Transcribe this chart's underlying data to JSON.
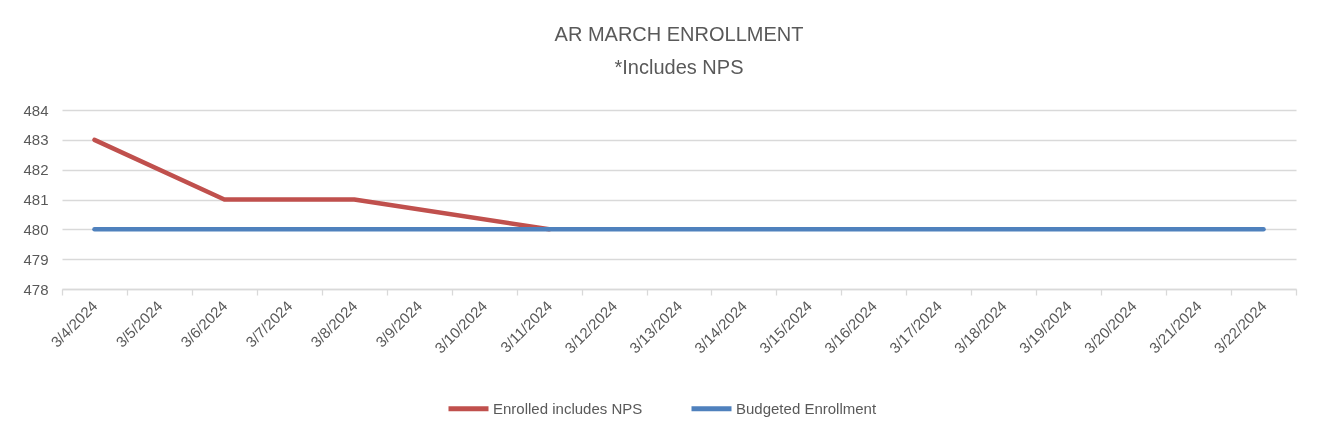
{
  "chart_data": {
    "type": "line",
    "title": "AR MARCH ENROLLMENT",
    "subtitle": "*Includes NPS",
    "x": [
      "2024-03-04",
      "2024-03-06",
      "2024-03-08",
      "2024-03-11",
      "2024-03-13",
      "2024-03-15",
      "2024-03-18",
      "2024-03-20",
      "2024-03-22"
    ],
    "series": [
      {
        "name": "Enrolled includes NPS",
        "color": "#c0504d",
        "x": [
          "2024-03-04",
          "2024-03-06",
          "2024-03-08",
          "2024-03-11"
        ],
        "values": [
          483,
          481,
          481,
          480
        ]
      },
      {
        "name": "Budgeted Enrollment",
        "color": "#4f81bd",
        "values": [
          480,
          480,
          480,
          480,
          480,
          480,
          480,
          480,
          480
        ]
      }
    ],
    "xlim": [
      "2024-03-03T12:00",
      "2024-03-22T12:00"
    ],
    "xticks": [
      {
        "value": "2024-03-03T12:00",
        "label": null
      },
      {
        "value": "2024-03-04",
        "label": "3/4/2024"
      },
      {
        "value": "2024-03-04T12:00",
        "label": null
      },
      {
        "value": "2024-03-05",
        "label": "3/5/2024"
      },
      {
        "value": "2024-03-05T12:00",
        "label": null
      },
      {
        "value": "2024-03-06",
        "label": "3/6/2024"
      },
      {
        "value": "2024-03-06T12:00",
        "label": null
      },
      {
        "value": "2024-03-07",
        "label": "3/7/2024"
      },
      {
        "value": "2024-03-07T12:00",
        "label": null
      },
      {
        "value": "2024-03-08",
        "label": "3/8/2024"
      },
      {
        "value": "2024-03-08T12:00",
        "label": null
      },
      {
        "value": "2024-03-09",
        "label": "3/9/2024"
      },
      {
        "value": "2024-03-09T12:00",
        "label": null
      },
      {
        "value": "2024-03-10",
        "label": "3/10/2024"
      },
      {
        "value": "2024-03-10T12:00",
        "label": null
      },
      {
        "value": "2024-03-11",
        "label": "3/11/2024"
      },
      {
        "value": "2024-03-11T12:00",
        "label": null
      },
      {
        "value": "2024-03-12",
        "label": "3/12/2024"
      },
      {
        "value": "2024-03-12T12:00",
        "label": null
      },
      {
        "value": "2024-03-13",
        "label": "3/13/2024"
      },
      {
        "value": "2024-03-13T12:00",
        "label": null
      },
      {
        "value": "2024-03-14",
        "label": "3/14/2024"
      },
      {
        "value": "2024-03-14T12:00",
        "label": null
      },
      {
        "value": "2024-03-15",
        "label": "3/15/2024"
      },
      {
        "value": "2024-03-15T12:00",
        "label": null
      },
      {
        "value": "2024-03-16",
        "label": "3/16/2024"
      },
      {
        "value": "2024-03-16T12:00",
        "label": null
      },
      {
        "value": "2024-03-17",
        "label": "3/17/2024"
      },
      {
        "value": "2024-03-17T12:00",
        "label": null
      },
      {
        "value": "2024-03-18",
        "label": "3/18/2024"
      },
      {
        "value": "2024-03-18T12:00",
        "label": null
      },
      {
        "value": "2024-03-19",
        "label": "3/19/2024"
      },
      {
        "value": "2024-03-19T12:00",
        "label": null
      },
      {
        "value": "2024-03-20",
        "label": "3/20/2024"
      },
      {
        "value": "2024-03-20T12:00",
        "label": null
      },
      {
        "value": "2024-03-21",
        "label": "3/21/2024"
      },
      {
        "value": "2024-03-21T12:00",
        "label": null
      },
      {
        "value": "2024-03-22",
        "label": "3/22/2024"
      },
      {
        "value": "2024-03-22T12:00",
        "label": null
      }
    ],
    "ylim": [
      478,
      484
    ],
    "yticks": [
      478,
      479,
      480,
      481,
      482,
      483,
      484
    ],
    "grid": "y",
    "legend": "bottom"
  }
}
